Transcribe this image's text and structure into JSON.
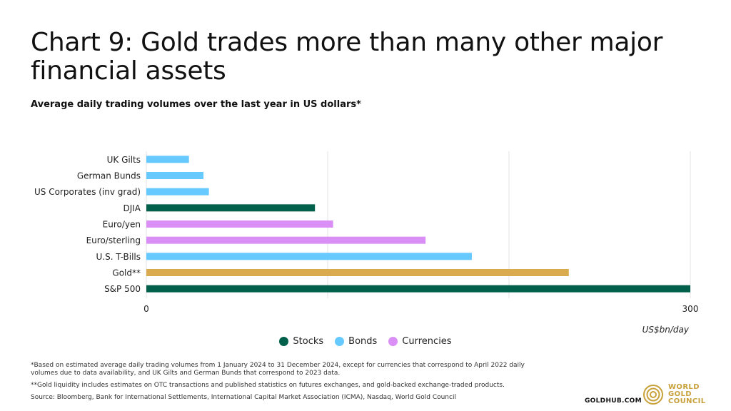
{
  "title": "Chart 9: Gold trades more than many other major financial assets",
  "subtitle": "Average daily trading volumes over the last year in US dollars*",
  "colors": {
    "Stocks": "#00604b",
    "Bonds": "#66c9ff",
    "Currencies": "#d98ff5",
    "Gold": "#d9ab4e",
    "grid": "#e3e3e3",
    "brand": "#c9a13b"
  },
  "legend": [
    {
      "label": "Stocks",
      "color": "#00604b"
    },
    {
      "label": "Bonds",
      "color": "#66c9ff"
    },
    {
      "label": "Currencies",
      "color": "#d98ff5"
    }
  ],
  "notes": {
    "note1": "*Based on estimated average daily trading volumes from 1 January 2024 to 31 December 2024, except for currencies that correspond to April 2022 daily volumes due to data availability, and UK Gilts and German Bunds that correspond to 2023 data.",
    "note2": "**Gold liquidity includes estimates on OTC transactions and published statistics on futures exchanges, and gold-backed exchange-traded products.",
    "source": "Source: Bloomberg, Bank for International Settlements, International Capital Market Association (ICMA), Nasdaq, World Gold Council"
  },
  "footer": {
    "site": "GOLDHUB.COM",
    "brand": "WORLD\nGOLD\nCOUNCIL",
    "brand_icon": "world-gold-council-logo-icon"
  },
  "chart_data": {
    "type": "bar",
    "orientation": "horizontal",
    "categories": [
      "UK Gilts",
      "German Bunds",
      "US Corporates (inv grad)",
      "DJIA",
      "Euro/yen",
      "Euro/sterling",
      "U.S. T-Bills",
      "Gold**",
      "S&P 500"
    ],
    "values": [
      23.5,
      31.5,
      34.5,
      93,
      103,
      154,
      179.5,
      233,
      300
    ],
    "groups": [
      "Bonds",
      "Bonds",
      "Bonds",
      "Stocks",
      "Currencies",
      "Currencies",
      "Bonds",
      "Gold",
      "Stocks"
    ],
    "xlim": [
      0,
      300
    ],
    "xticks": [
      0,
      300
    ],
    "gridlines": [
      0,
      100,
      200,
      300
    ],
    "xlabel": "US$bn/day",
    "grid": true,
    "legend_position": "bottom-center"
  }
}
